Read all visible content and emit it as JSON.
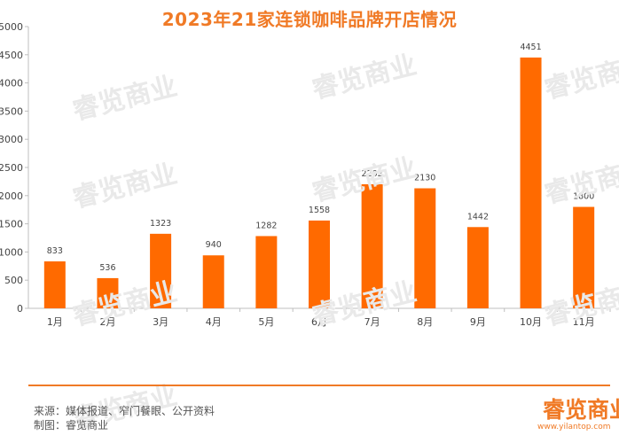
{
  "chart_data": {
    "type": "bar",
    "title": "2023年21家连锁咖啡品牌开店情况",
    "categories": [
      "1月",
      "2月",
      "3月",
      "4月",
      "5月",
      "6月",
      "7月",
      "8月",
      "9月",
      "10月",
      "11月"
    ],
    "values": [
      833,
      536,
      1323,
      940,
      1282,
      1558,
      2202,
      2130,
      1442,
      4451,
      1800
    ],
    "ylim": [
      0,
      5000
    ],
    "yticks": [
      0,
      500,
      1000,
      1500,
      2000,
      2500,
      3000,
      3500,
      4000,
      4500,
      5000
    ],
    "bar_color": "#FF6A00",
    "grid": false,
    "data_labels": true
  },
  "footer": {
    "source": "来源：媒体报道、窄门餐眼、公开资料",
    "maker": "制图：睿览商业",
    "logo": "睿览商业",
    "url": "www.yilantop.com"
  },
  "watermark": "睿览商业",
  "accent_color": "#F07A26"
}
